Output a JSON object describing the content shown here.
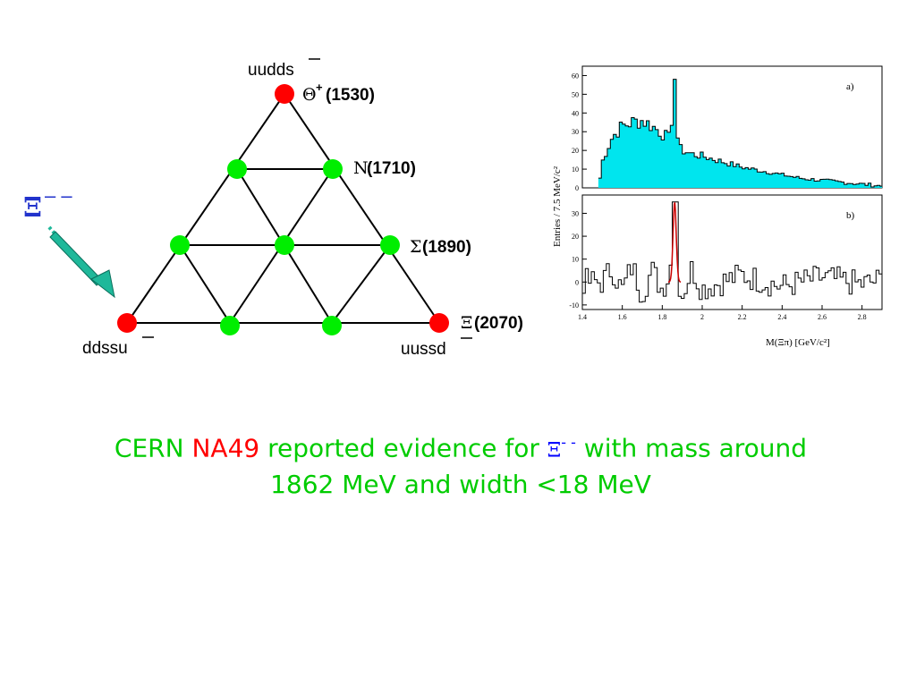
{
  "diagram": {
    "top_quarks": "uudds",
    "left_quarks": "ddssu",
    "right_quarks": "uussd",
    "theta_sym": "Θ",
    "theta_sup": "+",
    "theta_mass": "(1530)",
    "n_sym": "N",
    "n_mass": "(1710)",
    "sigma_sym": "Σ",
    "sigma_mass": "(1890)",
    "xi_sym": "Ξ",
    "xi_mass": "(2070)",
    "arrow_label_sym": "Ξ",
    "arrow_label_sup": "– –",
    "colors": {
      "corner": "#ff0000",
      "inner": "#00ee00",
      "arrow": "#1fb89a"
    }
  },
  "chart_data": {
    "type": "line",
    "xlabel": "M(Ξπ) [GeV/c²]",
    "ylabel": "Entries / 7.5 MeV/c²",
    "xlim": [
      1.4,
      2.9
    ],
    "x_ticks": [
      "1.4",
      "1.6",
      "1.8",
      "2",
      "2.2",
      "2.4",
      "2.6",
      "2.8"
    ],
    "panels": [
      {
        "label": "a)",
        "ylim": [
          0,
          65
        ],
        "y_ticks": [
          "0",
          "10",
          "20",
          "30",
          "40",
          "50",
          "60"
        ],
        "fill_color": "#00e5ee",
        "series": [
          {
            "values_x": [
              1.48,
              1.5,
              1.55,
              1.6,
              1.65,
              1.7,
              1.75,
              1.8,
              1.84,
              1.862,
              1.88,
              1.9,
              1.95,
              2.0,
              2.1,
              2.2,
              2.3,
              2.4,
              2.5,
              2.6,
              2.7,
              2.8,
              2.9
            ],
            "values_y": [
              0,
              14,
              27,
              33,
              35,
              36,
              33,
              29,
              26,
              58,
              22,
              20,
              18,
              17,
              14,
              11,
              9,
              7,
              5,
              4,
              3,
              2,
              1
            ]
          }
        ]
      },
      {
        "label": "b)",
        "ylim": [
          -12,
          38
        ],
        "y_ticks": [
          "-10",
          "0",
          "10",
          "20",
          "30"
        ],
        "peak_color": "#cc0000",
        "series": [
          {
            "values_x": [
              1.4,
              1.5,
              1.55,
              1.6,
              1.65,
              1.7,
              1.75,
              1.8,
              1.84,
              1.862,
              1.88,
              1.9,
              1.95,
              2.0,
              2.2,
              2.4,
              2.6,
              2.8,
              2.9
            ],
            "values_y": [
              0,
              0,
              6,
              -4,
              7,
              -5,
              5,
              -3,
              4,
              35,
              2,
              -6,
              6,
              -3,
              3,
              -2,
              2,
              -1,
              1
            ]
          }
        ]
      }
    ]
  },
  "caption": {
    "part1": "CERN ",
    "part2": "NA49",
    "part3": " reported evidence for ",
    "xi": "Ξ",
    "xi_sup": "- -",
    "part4": " with mass around",
    "line2": "1862 MeV and width <18 MeV"
  }
}
